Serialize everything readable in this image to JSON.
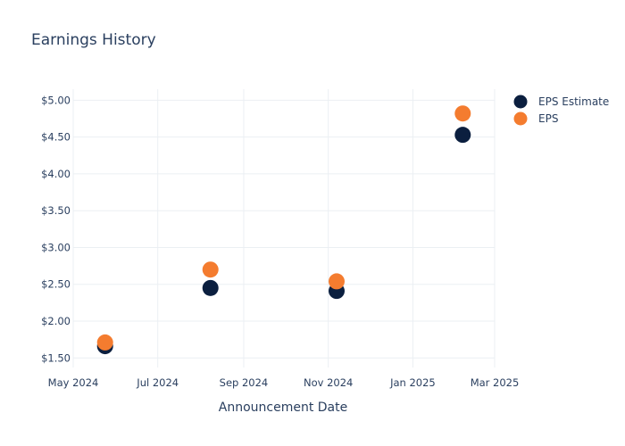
{
  "chart_data": {
    "type": "scatter",
    "title": "Earnings History",
    "xlabel": "Announcement Date",
    "ylabel": "",
    "xlim": [
      "2024-05-01",
      "2025-03-01"
    ],
    "ylim": [
      1.37,
      5.15
    ],
    "x_ticks": [
      "2024-05-01",
      "2024-07-01",
      "2024-09-01",
      "2024-11-01",
      "2025-01-01",
      "2025-03-01"
    ],
    "x_tick_labels": [
      "May 2024",
      "Jul 2024",
      "Sep 2024",
      "Nov 2024",
      "Jan 2025",
      "Mar 2025"
    ],
    "y_ticks": [
      1.5,
      2.0,
      2.5,
      3.0,
      3.5,
      4.0,
      4.5,
      5.0
    ],
    "y_tick_labels": [
      "$1.50",
      "$2.00",
      "$2.50",
      "$3.00",
      "$3.50",
      "$4.00",
      "$4.50",
      "$5.00"
    ],
    "grid": true,
    "legend_position": "top-right",
    "series": [
      {
        "name": "EPS Estimate",
        "color": "#0b1f3f",
        "points": [
          {
            "x": "2024-05-24",
            "y": 1.66
          },
          {
            "x": "2024-08-08",
            "y": 2.45
          },
          {
            "x": "2024-11-07",
            "y": 2.41
          },
          {
            "x": "2025-02-06",
            "y": 4.53
          }
        ]
      },
      {
        "name": "EPS",
        "color": "#f47c2f",
        "points": [
          {
            "x": "2024-05-24",
            "y": 1.71
          },
          {
            "x": "2024-08-08",
            "y": 2.7
          },
          {
            "x": "2024-11-07",
            "y": 2.54
          },
          {
            "x": "2025-02-06",
            "y": 4.82
          }
        ]
      }
    ]
  }
}
